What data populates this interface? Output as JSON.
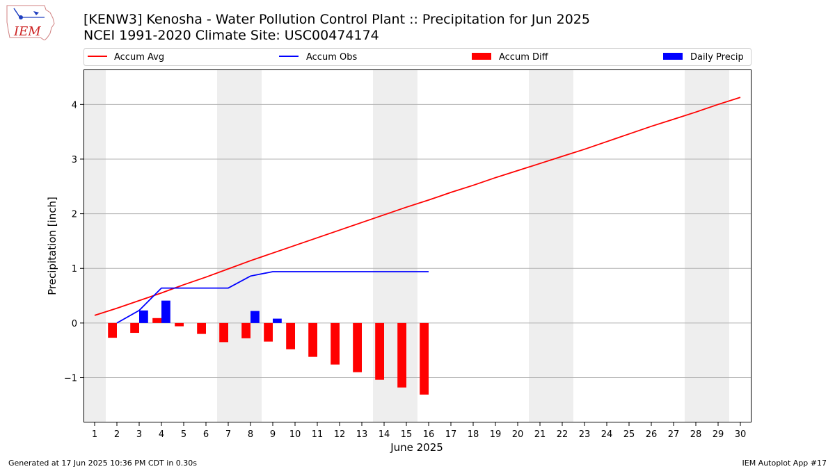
{
  "title": "[KENW3] Kenosha - Water Pollution Control Plant :: Precipitation for Jun 2025",
  "subtitle": "NCEI 1991-2020 Climate Site: USC00474174",
  "footer_left": "Generated at 17 Jun 2025 10:36 PM CDT in 0.30s",
  "footer_right": "IEM Autoplot App #17",
  "logo_text": "IEM",
  "chart_data": {
    "type": "bar",
    "title": "[KENW3] Kenosha - Water Pollution Control Plant :: Precipitation for Jun 2025",
    "subtitle": "NCEI 1991-2020 Climate Site: USC00474174",
    "xlabel": "June 2025",
    "ylabel": "Precipitation [inch]",
    "xlim": [
      0.5,
      30.5
    ],
    "ylim": [
      -1.82,
      4.64
    ],
    "yticks": [
      -1,
      0,
      1,
      2,
      3,
      4
    ],
    "ytick_labels": [
      "−1",
      "0",
      "1",
      "2",
      "3",
      "4"
    ],
    "x_ticks": [
      1,
      2,
      3,
      4,
      5,
      6,
      7,
      8,
      9,
      10,
      11,
      12,
      13,
      14,
      15,
      16,
      17,
      18,
      19,
      20,
      21,
      22,
      23,
      24,
      25,
      26,
      27,
      28,
      29,
      30
    ],
    "weekend_days": [
      1,
      7,
      8,
      14,
      15,
      21,
      22,
      28,
      29
    ],
    "grid": "horizontal",
    "legend": "top",
    "legend_entries": [
      {
        "label": "Accum Avg",
        "kind": "line",
        "color": "#ff0000"
      },
      {
        "label": "Accum Obs",
        "kind": "line",
        "color": "#0000ff"
      },
      {
        "label": "Accum Diff",
        "kind": "bar",
        "color": "#ff0000"
      },
      {
        "label": "Daily Precip",
        "kind": "bar",
        "color": "#0000ff"
      }
    ],
    "series": [
      {
        "name": "Accum Avg",
        "type": "line",
        "color": "#ff0000",
        "x": [
          1,
          2,
          3,
          4,
          5,
          6,
          7,
          8,
          9,
          10,
          11,
          12,
          13,
          14,
          15,
          16,
          17,
          18,
          19,
          20,
          21,
          22,
          23,
          24,
          25,
          26,
          27,
          28,
          29,
          30
        ],
        "values": [
          0.14,
          0.27,
          0.41,
          0.55,
          0.7,
          0.84,
          0.99,
          1.14,
          1.28,
          1.42,
          1.56,
          1.7,
          1.84,
          1.98,
          2.12,
          2.25,
          2.39,
          2.52,
          2.66,
          2.79,
          2.92,
          3.05,
          3.18,
          3.32,
          3.46,
          3.6,
          3.73,
          3.86,
          4.0,
          4.13
        ]
      },
      {
        "name": "Accum Obs",
        "type": "line",
        "color": "#0000ff",
        "x": [
          2,
          3,
          4,
          5,
          6,
          7,
          8,
          9,
          10,
          11,
          12,
          13,
          14,
          15,
          16
        ],
        "values": [
          0.0,
          0.23,
          0.64,
          0.64,
          0.64,
          0.64,
          0.86,
          0.94,
          0.94,
          0.94,
          0.94,
          0.94,
          0.94,
          0.94,
          0.94
        ]
      },
      {
        "name": "Accum Diff",
        "type": "bar",
        "color": "#ff0000",
        "x": [
          1,
          2,
          3,
          4,
          5,
          6,
          7,
          8,
          9,
          10,
          11,
          12,
          13,
          14,
          15,
          16
        ],
        "values": [
          0.0,
          -0.27,
          -0.18,
          0.09,
          -0.06,
          -0.2,
          -0.35,
          -0.28,
          -0.34,
          -0.48,
          -0.62,
          -0.76,
          -0.9,
          -1.04,
          -1.18,
          -1.31
        ]
      },
      {
        "name": "Daily Precip",
        "type": "bar",
        "color": "#0000ff",
        "x": [
          1,
          2,
          3,
          4,
          5,
          6,
          7,
          8,
          9,
          10,
          11,
          12,
          13,
          14,
          15,
          16
        ],
        "values": [
          0.0,
          0.0,
          0.23,
          0.41,
          0.0,
          0.0,
          0.0,
          0.22,
          0.08,
          0.0,
          0.0,
          0.0,
          0.0,
          0.0,
          0.0,
          0.0
        ]
      }
    ]
  }
}
